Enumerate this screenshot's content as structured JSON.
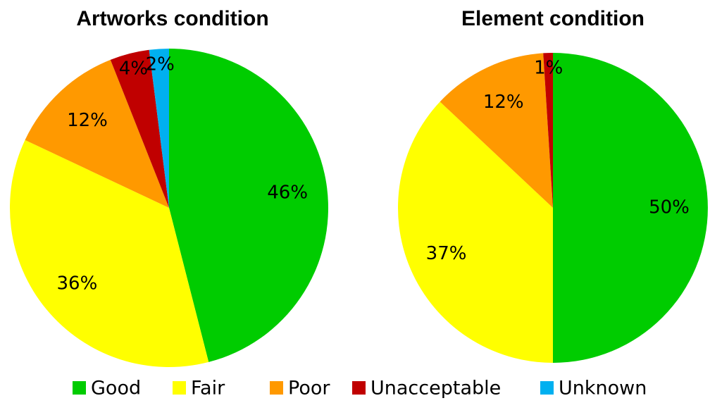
{
  "chart_data": [
    {
      "type": "pie",
      "title": "Artworks condition",
      "categories": [
        "Good",
        "Fair",
        "Poor",
        "Unacceptable",
        "Unknown"
      ],
      "values": [
        46,
        36,
        12,
        4,
        2
      ],
      "value_labels": [
        "46%",
        "36%",
        "12%",
        "4%",
        "2%"
      ],
      "colors": [
        "#00cc00",
        "#ffff00",
        "#ff9900",
        "#c00000",
        "#00b0f0"
      ]
    },
    {
      "type": "pie",
      "title": "Element condition",
      "categories": [
        "Good",
        "Fair",
        "Poor",
        "Unacceptable"
      ],
      "values": [
        50,
        37,
        12,
        1
      ],
      "value_labels": [
        "50%",
        "37%",
        "12%",
        "1%"
      ],
      "colors": [
        "#00cc00",
        "#ffff00",
        "#ff9900",
        "#c00000"
      ]
    }
  ]
}
